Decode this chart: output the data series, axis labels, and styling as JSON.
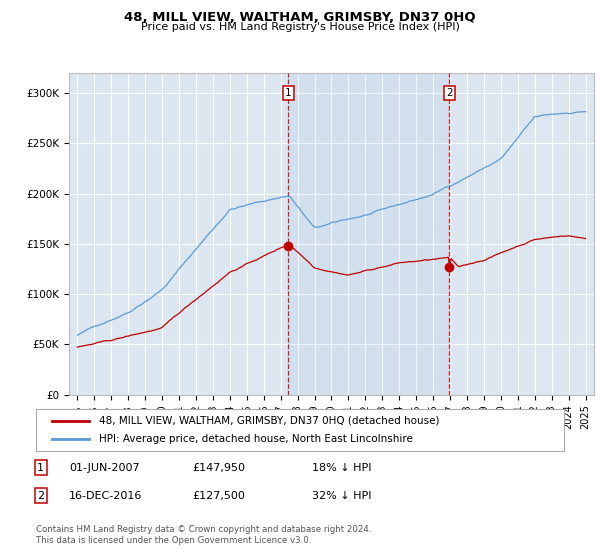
{
  "title": "48, MILL VIEW, WALTHAM, GRIMSBY, DN37 0HQ",
  "subtitle": "Price paid vs. HM Land Registry's House Price Index (HPI)",
  "background_color": "#ffffff",
  "plot_bg_color": "#dce6f0",
  "grid_color": "#ffffff",
  "hpi_color": "#5b9bd5",
  "price_color": "#c00000",
  "vline_color": "#c00000",
  "transactions": [
    {
      "date_year": 2007.458,
      "price": 147950,
      "label": "1"
    },
    {
      "date_year": 2016.958,
      "price": 127500,
      "label": "2"
    }
  ],
  "legend_entries": [
    "48, MILL VIEW, WALTHAM, GRIMSBY, DN37 0HQ (detached house)",
    "HPI: Average price, detached house, North East Lincolnshire"
  ],
  "table_rows": [
    {
      "num": "1",
      "date": "01-JUN-2007",
      "price": "£147,950",
      "hpi": "18% ↓ HPI"
    },
    {
      "num": "2",
      "date": "16-DEC-2016",
      "price": "£127,500",
      "hpi": "32% ↓ HPI"
    }
  ],
  "footer": "Contains HM Land Registry data © Crown copyright and database right 2024.\nThis data is licensed under the Open Government Licence v3.0.",
  "ylim": [
    0,
    320000
  ],
  "yticks": [
    0,
    50000,
    100000,
    150000,
    200000,
    250000,
    300000
  ],
  "ytick_labels": [
    "£0",
    "£50K",
    "£100K",
    "£150K",
    "£200K",
    "£250K",
    "£300K"
  ],
  "xlim": [
    1994.5,
    2025.5
  ],
  "xtick_years": [
    1995,
    1996,
    1997,
    1998,
    1999,
    2000,
    2001,
    2002,
    2003,
    2004,
    2005,
    2006,
    2007,
    2008,
    2009,
    2010,
    2011,
    2012,
    2013,
    2014,
    2015,
    2016,
    2017,
    2018,
    2019,
    2020,
    2021,
    2022,
    2023,
    2024,
    2025
  ]
}
